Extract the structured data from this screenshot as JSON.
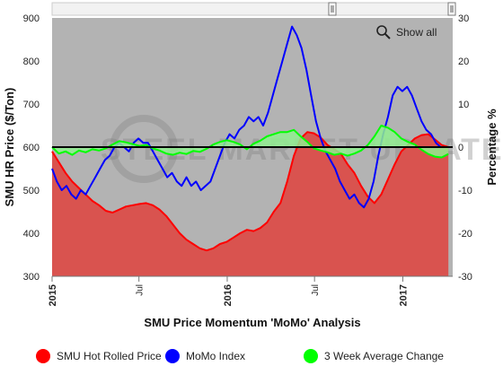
{
  "chart_data": {
    "type": "area",
    "title": "SMU Price Momentum 'MoMo' Analysis",
    "xlabel": "SMU Price Momentum 'MoMo' Analysis",
    "ylabel_left": "SMU HR Price ($/Ton)",
    "ylabel_right": "Percentage %",
    "ylim_left": [
      300,
      900
    ],
    "ylim_right": [
      -30,
      30
    ],
    "yticks_left": [
      300,
      400,
      500,
      600,
      700,
      800,
      900
    ],
    "yticks_right": [
      -30,
      -20,
      -10,
      0,
      10,
      20,
      30
    ],
    "x_range": [
      "2015-01-01",
      "2017-04-15"
    ],
    "xticks": [
      {
        "date": "2015-01-01",
        "label": "2015",
        "major": true
      },
      {
        "date": "2015-07-01",
        "label": "Jul",
        "major": false
      },
      {
        "date": "2016-01-01",
        "label": "2016",
        "major": true
      },
      {
        "date": "2016-07-01",
        "label": "Jul",
        "major": false
      },
      {
        "date": "2017-01-01",
        "label": "2017",
        "major": true
      }
    ],
    "grid": false,
    "legend_position": "bottom",
    "watermark": "STEEL MARKET UPDATE",
    "zoom_label": "Show all",
    "series": [
      {
        "name": "SMU Hot Rolled Price",
        "axis": "left",
        "kind": "area",
        "color": "#ff0000",
        "fill": "#d9534f",
        "points": [
          [
            "2015-01-01",
            590
          ],
          [
            "2015-01-15",
            565
          ],
          [
            "2015-01-29",
            540
          ],
          [
            "2015-02-12",
            520
          ],
          [
            "2015-02-26",
            505
          ],
          [
            "2015-03-12",
            490
          ],
          [
            "2015-03-26",
            475
          ],
          [
            "2015-04-09",
            465
          ],
          [
            "2015-04-23",
            452
          ],
          [
            "2015-05-07",
            448
          ],
          [
            "2015-05-21",
            455
          ],
          [
            "2015-06-04",
            462
          ],
          [
            "2015-06-18",
            465
          ],
          [
            "2015-07-02",
            468
          ],
          [
            "2015-07-16",
            470
          ],
          [
            "2015-07-30",
            465
          ],
          [
            "2015-08-13",
            455
          ],
          [
            "2015-08-27",
            440
          ],
          [
            "2015-09-10",
            420
          ],
          [
            "2015-09-24",
            400
          ],
          [
            "2015-10-08",
            385
          ],
          [
            "2015-10-22",
            375
          ],
          [
            "2015-11-05",
            365
          ],
          [
            "2015-11-19",
            360
          ],
          [
            "2015-12-03",
            365
          ],
          [
            "2015-12-17",
            375
          ],
          [
            "2015-12-31",
            380
          ],
          [
            "2016-01-14",
            390
          ],
          [
            "2016-01-28",
            400
          ],
          [
            "2016-02-11",
            408
          ],
          [
            "2016-02-25",
            405
          ],
          [
            "2016-03-10",
            412
          ],
          [
            "2016-03-24",
            425
          ],
          [
            "2016-04-07",
            450
          ],
          [
            "2016-04-21",
            470
          ],
          [
            "2016-05-05",
            520
          ],
          [
            "2016-05-19",
            580
          ],
          [
            "2016-06-02",
            620
          ],
          [
            "2016-06-16",
            635
          ],
          [
            "2016-06-30",
            632
          ],
          [
            "2016-07-14",
            622
          ],
          [
            "2016-07-28",
            605
          ],
          [
            "2016-08-11",
            595
          ],
          [
            "2016-08-25",
            585
          ],
          [
            "2016-09-08",
            560
          ],
          [
            "2016-09-22",
            540
          ],
          [
            "2016-10-06",
            510
          ],
          [
            "2016-10-20",
            485
          ],
          [
            "2016-11-03",
            470
          ],
          [
            "2016-11-17",
            490
          ],
          [
            "2016-12-01",
            525
          ],
          [
            "2016-12-15",
            560
          ],
          [
            "2016-12-29",
            590
          ],
          [
            "2017-01-12",
            605
          ],
          [
            "2017-01-26",
            620
          ],
          [
            "2017-02-09",
            628
          ],
          [
            "2017-02-23",
            630
          ],
          [
            "2017-03-09",
            618
          ],
          [
            "2017-03-23",
            605
          ],
          [
            "2017-04-06",
            600
          ]
        ]
      },
      {
        "name": "MoMo Index",
        "axis": "right",
        "kind": "line",
        "color": "#0000ff",
        "points": [
          [
            "2015-01-01",
            -5
          ],
          [
            "2015-01-11",
            -8
          ],
          [
            "2015-01-21",
            -10
          ],
          [
            "2015-01-31",
            -9
          ],
          [
            "2015-02-10",
            -11
          ],
          [
            "2015-02-20",
            -12
          ],
          [
            "2015-03-02",
            -10
          ],
          [
            "2015-03-12",
            -11
          ],
          [
            "2015-03-22",
            -9
          ],
          [
            "2015-04-01",
            -7
          ],
          [
            "2015-04-11",
            -5
          ],
          [
            "2015-04-21",
            -3
          ],
          [
            "2015-05-01",
            -2
          ],
          [
            "2015-05-11",
            0
          ],
          [
            "2015-05-21",
            1
          ],
          [
            "2015-05-31",
            0
          ],
          [
            "2015-06-10",
            -1
          ],
          [
            "2015-06-20",
            1
          ],
          [
            "2015-06-30",
            2
          ],
          [
            "2015-07-10",
            1
          ],
          [
            "2015-07-20",
            1
          ],
          [
            "2015-07-30",
            -1
          ],
          [
            "2015-08-09",
            -3
          ],
          [
            "2015-08-19",
            -5
          ],
          [
            "2015-08-29",
            -7
          ],
          [
            "2015-09-08",
            -6
          ],
          [
            "2015-09-18",
            -8
          ],
          [
            "2015-09-28",
            -9
          ],
          [
            "2015-10-08",
            -7
          ],
          [
            "2015-10-18",
            -9
          ],
          [
            "2015-10-28",
            -8
          ],
          [
            "2015-11-07",
            -10
          ],
          [
            "2015-11-17",
            -9
          ],
          [
            "2015-11-27",
            -8
          ],
          [
            "2015-12-07",
            -5
          ],
          [
            "2015-12-17",
            -2
          ],
          [
            "2015-12-27",
            1
          ],
          [
            "2016-01-06",
            3
          ],
          [
            "2016-01-16",
            2
          ],
          [
            "2016-01-26",
            4
          ],
          [
            "2016-02-05",
            5
          ],
          [
            "2016-02-15",
            7
          ],
          [
            "2016-02-25",
            6
          ],
          [
            "2016-03-06",
            7
          ],
          [
            "2016-03-16",
            5
          ],
          [
            "2016-03-26",
            8
          ],
          [
            "2016-04-05",
            12
          ],
          [
            "2016-04-15",
            16
          ],
          [
            "2016-04-25",
            20
          ],
          [
            "2016-05-05",
            24
          ],
          [
            "2016-05-15",
            28
          ],
          [
            "2016-05-25",
            26
          ],
          [
            "2016-06-04",
            23
          ],
          [
            "2016-06-14",
            18
          ],
          [
            "2016-06-24",
            12
          ],
          [
            "2016-07-04",
            6
          ],
          [
            "2016-07-14",
            2
          ],
          [
            "2016-07-24",
            -1
          ],
          [
            "2016-08-03",
            -3
          ],
          [
            "2016-08-13",
            -5
          ],
          [
            "2016-08-23",
            -8
          ],
          [
            "2016-09-02",
            -10
          ],
          [
            "2016-09-12",
            -12
          ],
          [
            "2016-09-22",
            -11
          ],
          [
            "2016-10-02",
            -13
          ],
          [
            "2016-10-12",
            -14
          ],
          [
            "2016-10-22",
            -12
          ],
          [
            "2016-11-01",
            -8
          ],
          [
            "2016-11-11",
            -2
          ],
          [
            "2016-11-21",
            3
          ],
          [
            "2016-12-01",
            7
          ],
          [
            "2016-12-11",
            12
          ],
          [
            "2016-12-21",
            14
          ],
          [
            "2016-12-31",
            13
          ],
          [
            "2017-01-10",
            14
          ],
          [
            "2017-01-20",
            12
          ],
          [
            "2017-01-30",
            9
          ],
          [
            "2017-02-09",
            6
          ],
          [
            "2017-02-19",
            4
          ],
          [
            "2017-03-01",
            3
          ],
          [
            "2017-03-11",
            1
          ],
          [
            "2017-03-21",
            0
          ]
        ]
      },
      {
        "name": "3 Week Average Change",
        "axis": "right",
        "kind": "area",
        "color": "#00ff00",
        "fill": "#90ee90",
        "points": [
          [
            "2015-01-01",
            0
          ],
          [
            "2015-01-15",
            -1.5
          ],
          [
            "2015-01-29",
            -1
          ],
          [
            "2015-02-12",
            -1.8
          ],
          [
            "2015-02-26",
            -0.8
          ],
          [
            "2015-03-12",
            -1.2
          ],
          [
            "2015-03-26",
            -0.5
          ],
          [
            "2015-04-09",
            -0.8
          ],
          [
            "2015-04-23",
            -0.3
          ],
          [
            "2015-05-07",
            0.6
          ],
          [
            "2015-05-21",
            1.4
          ],
          [
            "2015-06-04",
            1.1
          ],
          [
            "2015-06-18",
            0.7
          ],
          [
            "2015-07-02",
            0.3
          ],
          [
            "2015-07-16",
            0.5
          ],
          [
            "2015-07-30",
            -0.3
          ],
          [
            "2015-08-13",
            -0.8
          ],
          [
            "2015-08-27",
            -1.5
          ],
          [
            "2015-09-10",
            -1.8
          ],
          [
            "2015-09-24",
            -1.3
          ],
          [
            "2015-10-08",
            -1.6
          ],
          [
            "2015-10-22",
            -0.9
          ],
          [
            "2015-11-05",
            -1.1
          ],
          [
            "2015-11-19",
            -0.4
          ],
          [
            "2015-12-03",
            0.6
          ],
          [
            "2015-12-17",
            1.2
          ],
          [
            "2015-12-31",
            1.6
          ],
          [
            "2016-01-14",
            1.2
          ],
          [
            "2016-01-28",
            0.6
          ],
          [
            "2016-02-11",
            -0.5
          ],
          [
            "2016-02-25",
            0.8
          ],
          [
            "2016-03-10",
            1.5
          ],
          [
            "2016-03-24",
            2.5
          ],
          [
            "2016-04-07",
            3.0
          ],
          [
            "2016-04-21",
            3.5
          ],
          [
            "2016-05-05",
            3.5
          ],
          [
            "2016-05-19",
            4.0
          ],
          [
            "2016-06-02",
            2.5
          ],
          [
            "2016-06-16",
            1.2
          ],
          [
            "2016-06-30",
            -0.3
          ],
          [
            "2016-07-14",
            -0.8
          ],
          [
            "2016-07-28",
            -1.2
          ],
          [
            "2016-08-11",
            -1.8
          ],
          [
            "2016-08-25",
            -1.5
          ],
          [
            "2016-09-08",
            -2.0
          ],
          [
            "2016-09-22",
            -1.5
          ],
          [
            "2016-10-06",
            -0.8
          ],
          [
            "2016-10-20",
            0.5
          ],
          [
            "2016-11-03",
            2.5
          ],
          [
            "2016-11-17",
            5.0
          ],
          [
            "2016-12-01",
            4.5
          ],
          [
            "2016-12-15",
            3.5
          ],
          [
            "2016-12-29",
            2.0
          ],
          [
            "2017-01-12",
            1.2
          ],
          [
            "2017-01-26",
            0.6
          ],
          [
            "2017-02-09",
            -0.6
          ],
          [
            "2017-02-23",
            -1.6
          ],
          [
            "2017-03-09",
            -2.2
          ],
          [
            "2017-03-23",
            -2.4
          ],
          [
            "2017-04-06",
            -1.6
          ]
        ]
      }
    ]
  }
}
